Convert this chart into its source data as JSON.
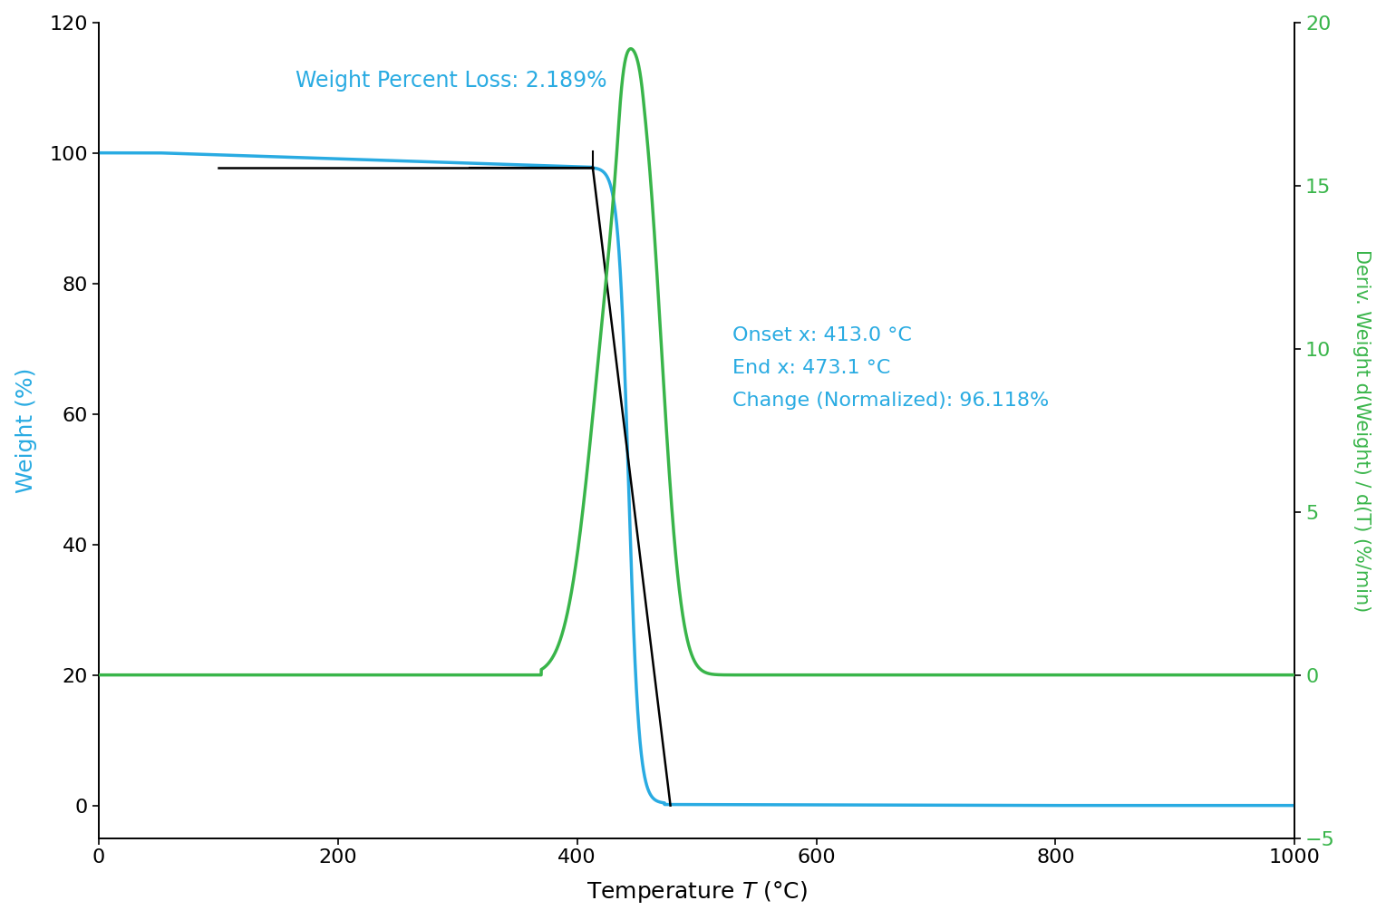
{
  "xlabel": "Temperature Τ (°C)",
  "ylabel_left": "Weight (%)",
  "ylabel_right": "Deriv. Weight d(Weight) / d(Τ) (%/min)",
  "xlim": [
    0,
    1000
  ],
  "ylim_left": [
    -5,
    120
  ],
  "ylim_right": [
    -5,
    20
  ],
  "color_blue": "#29ABE2",
  "color_green": "#39B54A",
  "annotation_weight_loss": "Weight Percent Loss: 2.189%",
  "annotation_line1": "Onset x: 413.0 °C",
  "annotation_line2": "End x: 473.1 °C",
  "annotation_line3": "Change (Normalized): 96.118%",
  "onset_x": 413.0,
  "end_x": 473.1,
  "yticks_left": [
    0,
    20,
    40,
    60,
    80,
    100,
    120
  ],
  "yticks_right": [
    -5,
    0,
    5,
    10,
    15,
    20
  ],
  "xticks": [
    0,
    200,
    400,
    600,
    800,
    1000
  ],
  "bracket_x1": 310,
  "bracket_x2": 413,
  "bracket_y": 97.8
}
